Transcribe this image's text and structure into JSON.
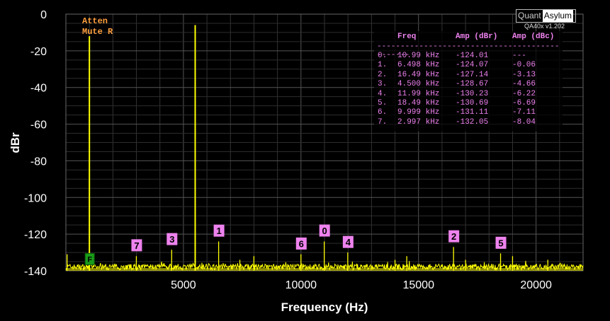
{
  "chart_data": {
    "type": "line",
    "xlabel": "Frequency (Hz)",
    "ylabel": "dBr",
    "xlim": [
      0,
      22000
    ],
    "ylim": [
      -140,
      0
    ],
    "x_ticks": [
      "5000",
      "10000",
      "15000",
      "20000"
    ],
    "y_ticks": [
      "0",
      "-20",
      "-40",
      "-60",
      "-80",
      "-100",
      "-120",
      "-140"
    ],
    "grid": true,
    "trace_color": "#ffff00",
    "fundamentals": [
      {
        "x": 1000,
        "y": -12
      },
      {
        "x": 5500,
        "y": -6
      }
    ],
    "spurs": [
      {
        "x": 50,
        "y": -131
      },
      {
        "x": 1000,
        "y": -111
      },
      {
        "x": 2997,
        "y": -132
      },
      {
        "x": 4500,
        "y": -128.5
      },
      {
        "x": 5500,
        "y": -124
      },
      {
        "x": 6498,
        "y": -124
      },
      {
        "x": 7400,
        "y": -134
      },
      {
        "x": 7998,
        "y": -132
      },
      {
        "x": 9999,
        "y": -131
      },
      {
        "x": 10990,
        "y": -124
      },
      {
        "x": 11990,
        "y": -130
      },
      {
        "x": 14000,
        "y": -134
      },
      {
        "x": 14500,
        "y": -132
      },
      {
        "x": 16490,
        "y": -127
      },
      {
        "x": 17000,
        "y": -134
      },
      {
        "x": 18490,
        "y": -130.5
      },
      {
        "x": 19000,
        "y": -132
      },
      {
        "x": 20500,
        "y": -134
      }
    ],
    "markers": [
      {
        "label": "0",
        "x": 10990,
        "y": -124.01
      },
      {
        "label": "1",
        "x": 6498,
        "y": -124.07
      },
      {
        "label": "2",
        "x": 16490,
        "y": -127.14
      },
      {
        "label": "3",
        "x": 4500,
        "y": -128.67
      },
      {
        "label": "4",
        "x": 11990,
        "y": -130.23
      },
      {
        "label": "5",
        "x": 18490,
        "y": -130.69
      },
      {
        "label": "6",
        "x": 9999,
        "y": -131.11
      },
      {
        "label": "7",
        "x": 2997,
        "y": -132.05
      }
    ],
    "green_marker": {
      "label": "F",
      "x": 1000,
      "y": -134
    }
  },
  "status": {
    "line1": "Atten",
    "line2": "Mute R"
  },
  "logo": {
    "part1": "Quant",
    "part2": "Asylum",
    "version": "QA40x v1.202"
  },
  "harmonics_table": {
    "headers": [
      "Freq",
      "Amp (dBr)",
      "Amp (dBc)"
    ],
    "separator": "----------------------------------------------",
    "rows": [
      {
        "idx": "0.",
        "freq": "10.99 kHz",
        "dbr": "-124.01",
        "dbc": "---"
      },
      {
        "idx": "1.",
        "freq": "6.498 kHz",
        "dbr": "-124.07",
        "dbc": "-0.06"
      },
      {
        "idx": "2.",
        "freq": "16.49 kHz",
        "dbr": "-127.14",
        "dbc": "-3.13"
      },
      {
        "idx": "3.",
        "freq": "4.500 kHz",
        "dbr": "-128.67",
        "dbc": "-4.66"
      },
      {
        "idx": "4.",
        "freq": "11.99 kHz",
        "dbr": "-130.23",
        "dbc": "-6.22"
      },
      {
        "idx": "5.",
        "freq": "18.49 kHz",
        "dbr": "-130.69",
        "dbc": "-6.69"
      },
      {
        "idx": "6.",
        "freq": "9.999 kHz",
        "dbr": "-131.11",
        "dbc": "-7.11"
      },
      {
        "idx": "7.",
        "freq": "2.997 kHz",
        "dbr": "-132.05",
        "dbc": "-8.04"
      }
    ]
  },
  "colors": {
    "background": "#000000",
    "trace": "#ffff00",
    "marker_fill": "#ee82ee",
    "status_text": "#ff9e3d",
    "green_marker": "#1a9c1a"
  }
}
